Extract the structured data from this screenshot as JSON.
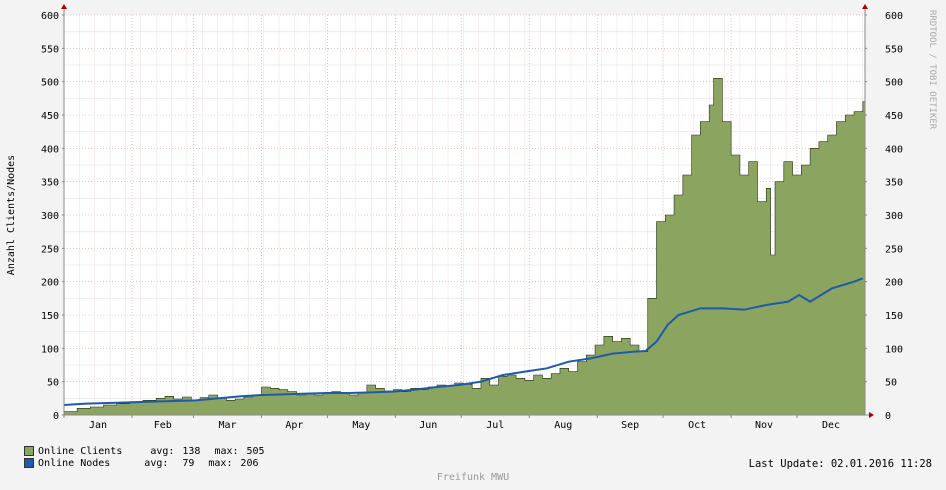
{
  "chart_data": {
    "type": "area",
    "ylabel": "Anzahl Clients/Nodes",
    "ylim": [
      0,
      600
    ],
    "yticks": [
      0,
      50,
      100,
      150,
      200,
      250,
      300,
      350,
      400,
      450,
      500,
      550,
      600
    ],
    "months": [
      "Jan",
      "Feb",
      "Mar",
      "Apr",
      "May",
      "Jun",
      "Jul",
      "Aug",
      "Sep",
      "Oct",
      "Nov",
      "Dec"
    ],
    "grid": true,
    "colors": {
      "clients": "#8ba561",
      "clients_line": "#1f2d12",
      "nodes": "#1f5aa8",
      "grid": "#e59a9a",
      "axis": "#888888"
    },
    "series": [
      {
        "name": "Online Clients",
        "points": [
          [
            0,
            5
          ],
          [
            6,
            10
          ],
          [
            12,
            12
          ],
          [
            18,
            15
          ],
          [
            24,
            17
          ],
          [
            30,
            20
          ],
          [
            36,
            22
          ],
          [
            42,
            25
          ],
          [
            46,
            28
          ],
          [
            50,
            24
          ],
          [
            54,
            27
          ],
          [
            58,
            22
          ],
          [
            62,
            26
          ],
          [
            66,
            30
          ],
          [
            70,
            25
          ],
          [
            74,
            22
          ],
          [
            78,
            24
          ],
          [
            82,
            27
          ],
          [
            86,
            30
          ],
          [
            90,
            42
          ],
          [
            94,
            40
          ],
          [
            98,
            38
          ],
          [
            102,
            35
          ],
          [
            106,
            30
          ],
          [
            110,
            32
          ],
          [
            114,
            30
          ],
          [
            118,
            33
          ],
          [
            122,
            35
          ],
          [
            126,
            32
          ],
          [
            130,
            30
          ],
          [
            134,
            34
          ],
          [
            138,
            45
          ],
          [
            142,
            40
          ],
          [
            146,
            36
          ],
          [
            150,
            38
          ],
          [
            154,
            35
          ],
          [
            158,
            40
          ],
          [
            162,
            38
          ],
          [
            166,
            42
          ],
          [
            170,
            45
          ],
          [
            174,
            44
          ],
          [
            178,
            48
          ],
          [
            182,
            46
          ],
          [
            186,
            40
          ],
          [
            190,
            55
          ],
          [
            194,
            45
          ],
          [
            198,
            58
          ],
          [
            202,
            60
          ],
          [
            206,
            55
          ],
          [
            210,
            52
          ],
          [
            214,
            60
          ],
          [
            218,
            55
          ],
          [
            222,
            62
          ],
          [
            226,
            70
          ],
          [
            230,
            65
          ],
          [
            234,
            80
          ],
          [
            238,
            90
          ],
          [
            242,
            105
          ],
          [
            246,
            118
          ],
          [
            250,
            110
          ],
          [
            254,
            115
          ],
          [
            258,
            105
          ],
          [
            262,
            95
          ],
          [
            266,
            175
          ],
          [
            270,
            290
          ],
          [
            274,
            300
          ],
          [
            278,
            330
          ],
          [
            282,
            360
          ],
          [
            286,
            420
          ],
          [
            290,
            440
          ],
          [
            294,
            465
          ],
          [
            296,
            505
          ],
          [
            300,
            440
          ],
          [
            304,
            390
          ],
          [
            308,
            360
          ],
          [
            312,
            380
          ],
          [
            316,
            320
          ],
          [
            320,
            340
          ],
          [
            322,
            240
          ],
          [
            324,
            350
          ],
          [
            328,
            380
          ],
          [
            332,
            360
          ],
          [
            336,
            375
          ],
          [
            340,
            400
          ],
          [
            344,
            410
          ],
          [
            348,
            420
          ],
          [
            352,
            440
          ],
          [
            356,
            450
          ],
          [
            360,
            455
          ],
          [
            364,
            470
          ]
        ]
      },
      {
        "name": "Online Nodes",
        "points": [
          [
            0,
            15
          ],
          [
            10,
            17
          ],
          [
            20,
            18
          ],
          [
            30,
            19
          ],
          [
            40,
            20
          ],
          [
            50,
            21
          ],
          [
            60,
            22
          ],
          [
            70,
            25
          ],
          [
            80,
            28
          ],
          [
            90,
            30
          ],
          [
            100,
            31
          ],
          [
            110,
            32
          ],
          [
            120,
            33
          ],
          [
            130,
            33
          ],
          [
            140,
            34
          ],
          [
            150,
            35
          ],
          [
            160,
            38
          ],
          [
            170,
            42
          ],
          [
            180,
            45
          ],
          [
            190,
            50
          ],
          [
            200,
            60
          ],
          [
            210,
            65
          ],
          [
            220,
            70
          ],
          [
            230,
            80
          ],
          [
            240,
            85
          ],
          [
            250,
            92
          ],
          [
            260,
            95
          ],
          [
            265,
            96
          ],
          [
            270,
            110
          ],
          [
            275,
            135
          ],
          [
            280,
            150
          ],
          [
            290,
            160
          ],
          [
            300,
            160
          ],
          [
            310,
            158
          ],
          [
            320,
            165
          ],
          [
            330,
            170
          ],
          [
            335,
            180
          ],
          [
            340,
            170
          ],
          [
            350,
            190
          ],
          [
            360,
            200
          ],
          [
            364,
            205
          ]
        ]
      }
    ]
  },
  "legend": {
    "items": [
      {
        "label": "Online Clients",
        "avg_label": "avg:",
        "avg": "138",
        "max_label": "max:",
        "max": "505",
        "color": "#8ba561"
      },
      {
        "label": "Online Nodes",
        "avg_label": "avg:",
        "avg": "79",
        "max_label": "max:",
        "max": "206",
        "color": "#1f5aa8"
      }
    ]
  },
  "footer": {
    "last_update_label": "Last Update:",
    "last_update_value": "02.01.2016 11:28",
    "credit": "Freifunk MWU"
  },
  "watermark": "RRDTOOL / TOBI OETIKER"
}
